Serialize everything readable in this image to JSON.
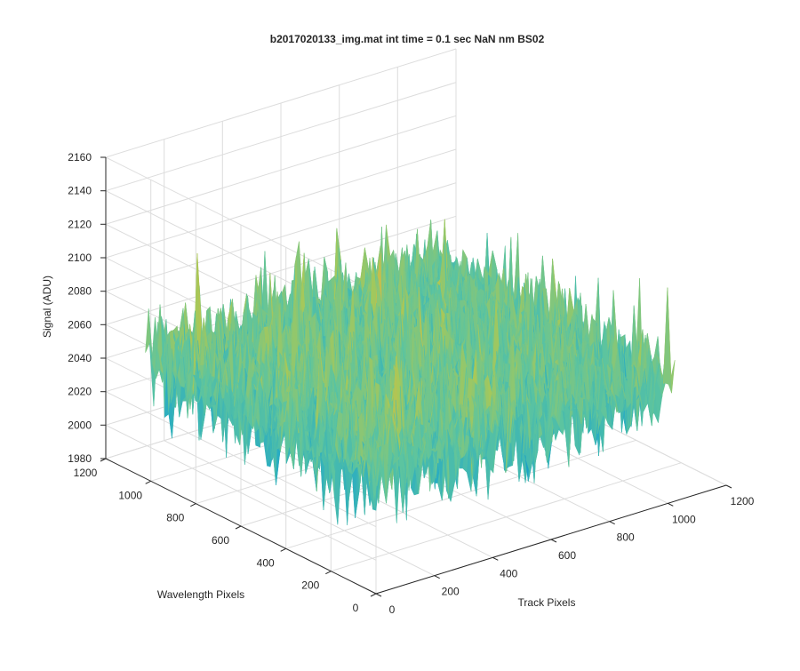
{
  "chart_data": {
    "type": "surface",
    "title": "b2017020133_img.mat int time = 0.1 sec  NaN nm BS02",
    "xlabel": "Track Pixels",
    "ylabel": "Wavelength Pixels",
    "zlabel": "Signal (ADU)",
    "xlim": [
      0,
      1200
    ],
    "ylim": [
      0,
      1200
    ],
    "zlim": [
      1980,
      2160
    ],
    "xticks": [
      "0",
      "200",
      "400",
      "600",
      "800",
      "1000",
      "1200"
    ],
    "yticks": [
      "0",
      "200",
      "400",
      "600",
      "800",
      "1000",
      "1200"
    ],
    "zticks": [
      "1980",
      "2000",
      "2020",
      "2040",
      "2060",
      "2080",
      "2100",
      "2120",
      "2140",
      "2160"
    ],
    "data_extent": {
      "x": [
        0,
        1024
      ],
      "y": [
        0,
        1024
      ]
    },
    "signal_mean": 2050,
    "signal_spread": 25,
    "colormap": [
      "#0072bd",
      "#20a8c8",
      "#5cc4a0",
      "#a8c858",
      "#e8b040"
    ],
    "grid": true
  }
}
